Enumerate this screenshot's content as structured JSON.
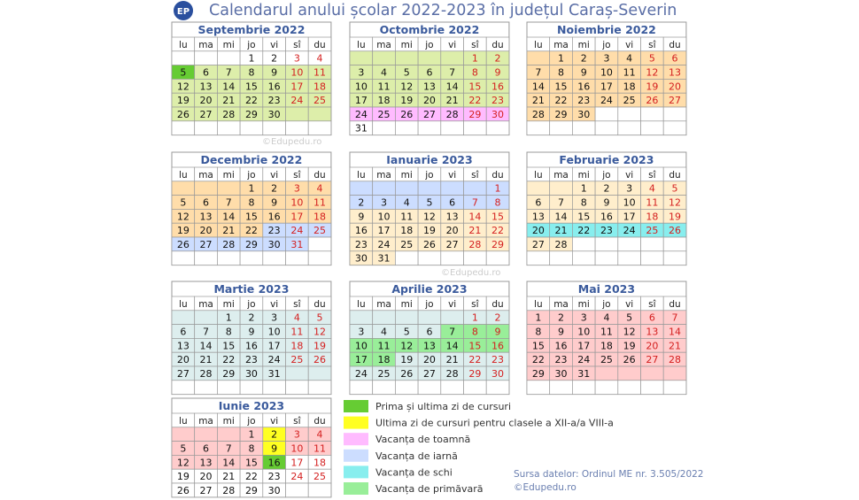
{
  "header": {
    "logo": "EP",
    "title": "Calendarul anului școlar 2022-2023 în județul Caraș-Severin"
  },
  "weekdays": [
    "lu",
    "ma",
    "mi",
    "jo",
    "vi",
    "sî",
    "du"
  ],
  "months": [
    {
      "name": "Septembrie 2022",
      "days": [
        [
          null,
          null,
          null,
          1,
          2,
          3,
          4
        ],
        [
          5,
          6,
          7,
          8,
          9,
          10,
          11
        ],
        [
          12,
          13,
          14,
          15,
          16,
          17,
          18
        ],
        [
          19,
          20,
          21,
          22,
          23,
          24,
          25
        ],
        [
          26,
          27,
          28,
          29,
          30,
          null,
          null
        ],
        [
          null,
          null,
          null,
          null,
          null,
          null,
          null
        ]
      ],
      "fills": [
        [
          "#fff",
          "#fff",
          "#fff",
          "#fff",
          "#fff",
          "#fff",
          "#fff"
        ],
        [
          "#6c3",
          "#dea",
          "#dea",
          "#dea",
          "#dea",
          "#dea",
          "#dea"
        ],
        [
          "#dea",
          "#dea",
          "#dea",
          "#dea",
          "#dea",
          "#dea",
          "#dea"
        ],
        [
          "#dea",
          "#dea",
          "#dea",
          "#dea",
          "#dea",
          "#dea",
          "#dea"
        ],
        [
          "#dea",
          "#dea",
          "#dea",
          "#dea",
          "#dea",
          "#dea",
          "#dea"
        ],
        [
          "#fff",
          "#fff",
          "#fff",
          "#fff",
          "#fff",
          "#fff",
          "#fff"
        ]
      ]
    },
    {
      "name": "Octombrie 2022",
      "days": [
        [
          null,
          null,
          null,
          null,
          null,
          1,
          2
        ],
        [
          3,
          4,
          5,
          6,
          7,
          8,
          9
        ],
        [
          10,
          11,
          12,
          13,
          14,
          15,
          16
        ],
        [
          17,
          18,
          19,
          20,
          21,
          22,
          23
        ],
        [
          24,
          25,
          26,
          27,
          28,
          29,
          30
        ],
        [
          31,
          null,
          null,
          null,
          null,
          null,
          null
        ]
      ],
      "fills": [
        [
          "#dea",
          "#dea",
          "#dea",
          "#dea",
          "#dea",
          "#dea",
          "#dea"
        ],
        [
          "#dea",
          "#dea",
          "#dea",
          "#dea",
          "#dea",
          "#dea",
          "#dea"
        ],
        [
          "#dea",
          "#dea",
          "#dea",
          "#dea",
          "#dea",
          "#dea",
          "#dea"
        ],
        [
          "#dea",
          "#dea",
          "#dea",
          "#dea",
          "#dea",
          "#dea",
          "#dea"
        ],
        [
          "#fbf",
          "#fbf",
          "#fbf",
          "#fbf",
          "#fbf",
          "#fbf",
          "#fbf"
        ],
        [
          "#fff",
          "#fff",
          "#fff",
          "#fff",
          "#fff",
          "#fff",
          "#fff"
        ]
      ]
    },
    {
      "name": "Noiembrie 2022",
      "days": [
        [
          null,
          1,
          2,
          3,
          4,
          5,
          6
        ],
        [
          7,
          8,
          9,
          10,
          11,
          12,
          13
        ],
        [
          14,
          15,
          16,
          17,
          18,
          19,
          20
        ],
        [
          21,
          22,
          23,
          24,
          25,
          26,
          27
        ],
        [
          28,
          29,
          30,
          null,
          null,
          null,
          null
        ],
        [
          null,
          null,
          null,
          null,
          null,
          null,
          null
        ]
      ],
      "fills": [
        [
          "#fda",
          "#fda",
          "#fda",
          "#fda",
          "#fda",
          "#fda",
          "#fda"
        ],
        [
          "#fda",
          "#fda",
          "#fda",
          "#fda",
          "#fda",
          "#fda",
          "#fda"
        ],
        [
          "#fda",
          "#fda",
          "#fda",
          "#fda",
          "#fda",
          "#fda",
          "#fda"
        ],
        [
          "#fda",
          "#fda",
          "#fda",
          "#fda",
          "#fda",
          "#fda",
          "#fda"
        ],
        [
          "#fda",
          "#fda",
          "#fda",
          "#fff",
          "#fff",
          "#fff",
          "#fff"
        ],
        [
          "#fff",
          "#fff",
          "#fff",
          "#fff",
          "#fff",
          "#fff",
          "#fff"
        ]
      ]
    },
    {
      "name": "Decembrie 2022",
      "days": [
        [
          null,
          null,
          null,
          1,
          2,
          3,
          4
        ],
        [
          5,
          6,
          7,
          8,
          9,
          10,
          11
        ],
        [
          12,
          13,
          14,
          15,
          16,
          17,
          18
        ],
        [
          19,
          20,
          21,
          22,
          23,
          24,
          25
        ],
        [
          26,
          27,
          28,
          29,
          30,
          31,
          null
        ],
        [
          null,
          null,
          null,
          null,
          null,
          null,
          null
        ]
      ],
      "fills": [
        [
          "#fda",
          "#fda",
          "#fda",
          "#fda",
          "#fda",
          "#fda",
          "#fda"
        ],
        [
          "#fda",
          "#fda",
          "#fda",
          "#fda",
          "#fda",
          "#fda",
          "#fda"
        ],
        [
          "#fda",
          "#fda",
          "#fda",
          "#fda",
          "#fda",
          "#fda",
          "#fda"
        ],
        [
          "#fda",
          "#fda",
          "#fda",
          "#fda",
          "#cdf",
          "#cdf",
          "#cdf"
        ],
        [
          "#cdf",
          "#cdf",
          "#cdf",
          "#cdf",
          "#cdf",
          "#cdf",
          "#fff"
        ],
        [
          "#fff",
          "#fff",
          "#fff",
          "#fff",
          "#fff",
          "#fff",
          "#fff"
        ]
      ]
    },
    {
      "name": "Ianuarie 2023",
      "days": [
        [
          null,
          null,
          null,
          null,
          null,
          null,
          1
        ],
        [
          2,
          3,
          4,
          5,
          6,
          7,
          8
        ],
        [
          9,
          10,
          11,
          12,
          13,
          14,
          15
        ],
        [
          16,
          17,
          18,
          19,
          20,
          21,
          22
        ],
        [
          23,
          24,
          25,
          26,
          27,
          28,
          29
        ],
        [
          30,
          31,
          null,
          null,
          null,
          null,
          null
        ]
      ],
      "fills": [
        [
          "#cdf",
          "#cdf",
          "#cdf",
          "#cdf",
          "#cdf",
          "#cdf",
          "#cdf"
        ],
        [
          "#cdf",
          "#cdf",
          "#cdf",
          "#cdf",
          "#cdf",
          "#cdf",
          "#cdf"
        ],
        [
          "#fec",
          "#fec",
          "#fec",
          "#fec",
          "#fec",
          "#fec",
          "#fec"
        ],
        [
          "#fec",
          "#fec",
          "#fec",
          "#fec",
          "#fec",
          "#fec",
          "#fec"
        ],
        [
          "#fec",
          "#fec",
          "#fec",
          "#fec",
          "#fec",
          "#fec",
          "#fec"
        ],
        [
          "#fec",
          "#fec",
          "#fff",
          "#fff",
          "#fff",
          "#fff",
          "#fff"
        ]
      ]
    },
    {
      "name": "Februarie 2023",
      "days": [
        [
          null,
          null,
          1,
          2,
          3,
          4,
          5
        ],
        [
          6,
          7,
          8,
          9,
          10,
          11,
          12
        ],
        [
          13,
          14,
          15,
          16,
          17,
          18,
          19
        ],
        [
          20,
          21,
          22,
          23,
          24,
          25,
          26
        ],
        [
          27,
          28,
          null,
          null,
          null,
          null,
          null
        ],
        [
          null,
          null,
          null,
          null,
          null,
          null,
          null
        ]
      ],
      "fills": [
        [
          "#fec",
          "#fec",
          "#fec",
          "#fec",
          "#fec",
          "#fec",
          "#fec"
        ],
        [
          "#fec",
          "#fec",
          "#fec",
          "#fec",
          "#fec",
          "#fec",
          "#fec"
        ],
        [
          "#fec",
          "#fec",
          "#fec",
          "#fec",
          "#fec",
          "#fec",
          "#fec"
        ],
        [
          "#8ee",
          "#8ee",
          "#8ee",
          "#8ee",
          "#8ee",
          "#8ee",
          "#8ee"
        ],
        [
          "#fec",
          "#fec",
          "#fff",
          "#fff",
          "#fff",
          "#fff",
          "#fff"
        ],
        [
          "#fff",
          "#fff",
          "#fff",
          "#fff",
          "#fff",
          "#fff",
          "#fff"
        ]
      ]
    },
    {
      "name": "Martie 2023",
      "days": [
        [
          null,
          null,
          1,
          2,
          3,
          4,
          5
        ],
        [
          6,
          7,
          8,
          9,
          10,
          11,
          12
        ],
        [
          13,
          14,
          15,
          16,
          17,
          18,
          19
        ],
        [
          20,
          21,
          22,
          23,
          24,
          25,
          26
        ],
        [
          27,
          28,
          29,
          30,
          31,
          null,
          null
        ],
        [
          null,
          null,
          null,
          null,
          null,
          null,
          null
        ]
      ],
      "fills": [
        [
          "#dee",
          "#dee",
          "#dee",
          "#dee",
          "#dee",
          "#dee",
          "#dee"
        ],
        [
          "#dee",
          "#dee",
          "#dee",
          "#dee",
          "#dee",
          "#dee",
          "#dee"
        ],
        [
          "#dee",
          "#dee",
          "#dee",
          "#dee",
          "#dee",
          "#dee",
          "#dee"
        ],
        [
          "#dee",
          "#dee",
          "#dee",
          "#dee",
          "#dee",
          "#dee",
          "#dee"
        ],
        [
          "#dee",
          "#dee",
          "#dee",
          "#dee",
          "#dee",
          "#dee",
          "#dee"
        ],
        [
          "#fff",
          "#fff",
          "#fff",
          "#fff",
          "#fff",
          "#fff",
          "#fff"
        ]
      ]
    },
    {
      "name": "Aprilie 2023",
      "days": [
        [
          null,
          null,
          null,
          null,
          null,
          1,
          2
        ],
        [
          3,
          4,
          5,
          6,
          7,
          8,
          9
        ],
        [
          10,
          11,
          12,
          13,
          14,
          15,
          16
        ],
        [
          17,
          18,
          19,
          20,
          21,
          22,
          23
        ],
        [
          24,
          25,
          26,
          27,
          28,
          29,
          30
        ],
        [
          null,
          null,
          null,
          null,
          null,
          null,
          null
        ]
      ],
      "fills": [
        [
          "#dee",
          "#dee",
          "#dee",
          "#dee",
          "#dee",
          "#dee",
          "#dee"
        ],
        [
          "#dee",
          "#dee",
          "#dee",
          "#dee",
          "#9e9",
          "#9e9",
          "#9e9"
        ],
        [
          "#9e9",
          "#9e9",
          "#9e9",
          "#9e9",
          "#9e9",
          "#9e9",
          "#9e9"
        ],
        [
          "#9e9",
          "#9e9",
          "#dee",
          "#dee",
          "#dee",
          "#dee",
          "#dee"
        ],
        [
          "#dee",
          "#dee",
          "#dee",
          "#dee",
          "#dee",
          "#dee",
          "#dee"
        ],
        [
          "#fff",
          "#fff",
          "#fff",
          "#fff",
          "#fff",
          "#fff",
          "#fff"
        ]
      ]
    },
    {
      "name": "Mai 2023",
      "days": [
        [
          1,
          2,
          3,
          4,
          5,
          6,
          7
        ],
        [
          8,
          9,
          10,
          11,
          12,
          13,
          14
        ],
        [
          15,
          16,
          17,
          18,
          19,
          20,
          21
        ],
        [
          22,
          23,
          24,
          25,
          26,
          27,
          28
        ],
        [
          29,
          30,
          31,
          null,
          null,
          null,
          null
        ],
        [
          null,
          null,
          null,
          null,
          null,
          null,
          null
        ]
      ],
      "fills": [
        [
          "#fcc",
          "#fcc",
          "#fcc",
          "#fcc",
          "#fcc",
          "#fcc",
          "#fcc"
        ],
        [
          "#fcc",
          "#fcc",
          "#fcc",
          "#fcc",
          "#fcc",
          "#fcc",
          "#fcc"
        ],
        [
          "#fcc",
          "#fcc",
          "#fcc",
          "#fcc",
          "#fcc",
          "#fcc",
          "#fcc"
        ],
        [
          "#fcc",
          "#fcc",
          "#fcc",
          "#fcc",
          "#fcc",
          "#fcc",
          "#fcc"
        ],
        [
          "#fcc",
          "#fcc",
          "#fcc",
          "#fcc",
          "#fcc",
          "#fcc",
          "#fcc"
        ],
        [
          "#fff",
          "#fff",
          "#fff",
          "#fff",
          "#fff",
          "#fff",
          "#fff"
        ]
      ]
    },
    {
      "name": "Iunie 2023",
      "days": [
        [
          null,
          null,
          null,
          1,
          2,
          3,
          4
        ],
        [
          5,
          6,
          7,
          8,
          9,
          10,
          11
        ],
        [
          12,
          13,
          14,
          15,
          16,
          17,
          18
        ],
        [
          19,
          20,
          21,
          22,
          23,
          24,
          25
        ],
        [
          26,
          27,
          28,
          29,
          30,
          null,
          null
        ]
      ],
      "fills": [
        [
          "#fcc",
          "#fcc",
          "#fcc",
          "#fcc",
          "#ff2",
          "#fcc",
          "#fcc"
        ],
        [
          "#fcc",
          "#fcc",
          "#fcc",
          "#fcc",
          "#ff2",
          "#fcc",
          "#fcc"
        ],
        [
          "#fcc",
          "#fcc",
          "#fcc",
          "#fcc",
          "#6c3",
          "#fff",
          "#fff"
        ],
        [
          "#fff",
          "#fff",
          "#fff",
          "#fff",
          "#fff",
          "#fff",
          "#fff"
        ],
        [
          "#fff",
          "#fff",
          "#fff",
          "#fff",
          "#fff",
          "#fff",
          "#fff"
        ]
      ]
    }
  ],
  "legend": [
    {
      "label": "Prima și ultima zi de cursuri",
      "color": "#6c3"
    },
    {
      "label": "Ultima zi de cursuri pentru clasele a XII-a/a VIII-a",
      "color": "#ff2"
    },
    {
      "label": "Vacanța de toamnă",
      "color": "#fbf"
    },
    {
      "label": "Vacanța de iarnă",
      "color": "#cdf"
    },
    {
      "label": "Vacanța de schi",
      "color": "#8ee"
    },
    {
      "label": "Vacanța de primăvară",
      "color": "#9e9"
    }
  ],
  "source": {
    "text": "Sursa datelor: Ordinul ME nr. 3.505/2022",
    "credit": "©Edupedu.ro"
  },
  "watermarks": [
    "©Edupedu.ro",
    "©Edupedu.ro"
  ]
}
